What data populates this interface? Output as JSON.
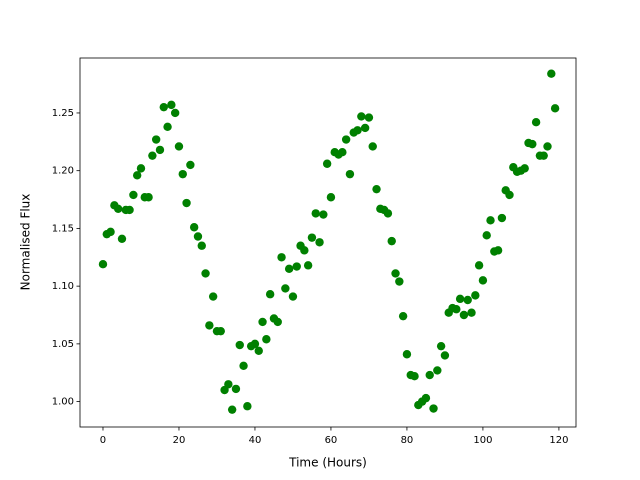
{
  "chart_data": {
    "type": "scatter",
    "xlabel": "Time (Hours)",
    "ylabel": "Normalised Flux",
    "x": [
      0,
      1,
      2,
      3,
      4,
      5,
      6,
      7,
      8,
      9,
      10,
      11,
      12,
      13,
      14,
      15,
      16,
      17,
      18,
      19,
      20,
      21,
      22,
      23,
      24,
      25,
      26,
      27,
      28,
      29,
      30,
      31,
      32,
      33,
      34,
      35,
      36,
      37,
      38,
      39,
      40,
      41,
      42,
      43,
      44,
      45,
      46,
      47,
      48,
      49,
      50,
      51,
      52,
      53,
      54,
      55,
      56,
      57,
      58,
      59,
      60,
      61,
      62,
      63,
      64,
      65,
      66,
      67,
      68,
      69,
      70,
      71,
      72,
      73,
      74,
      75,
      76,
      77,
      78,
      79,
      80,
      81,
      82,
      83,
      84,
      85,
      86,
      87,
      88,
      89,
      90,
      91,
      92,
      93,
      94,
      95,
      96,
      97,
      98,
      99,
      100,
      101,
      102,
      103,
      104,
      105,
      106,
      107,
      108,
      109,
      110,
      111,
      112,
      113,
      114,
      115,
      116,
      117,
      118,
      119
    ],
    "series": [
      {
        "color": "#008000",
        "values": [
          1.119,
          1.145,
          1.147,
          1.17,
          1.167,
          1.141,
          1.166,
          1.166,
          1.179,
          1.196,
          1.202,
          1.177,
          1.177,
          1.213,
          1.227,
          1.218,
          1.255,
          1.238,
          1.257,
          1.25,
          1.221,
          1.197,
          1.172,
          1.205,
          1.151,
          1.143,
          1.135,
          1.111,
          1.066,
          1.091,
          1.061,
          1.061,
          1.01,
          1.015,
          0.993,
          1.011,
          1.049,
          1.031,
          0.996,
          1.048,
          1.05,
          1.044,
          1.069,
          1.054,
          1.093,
          1.072,
          1.069,
          1.125,
          1.098,
          1.115,
          1.091,
          1.117,
          1.135,
          1.131,
          1.118,
          1.142,
          1.163,
          1.138,
          1.162,
          1.206,
          1.177,
          1.216,
          1.214,
          1.216,
          1.227,
          1.197,
          1.233,
          1.235,
          1.247,
          1.237,
          1.246,
          1.221,
          1.184,
          1.167,
          1.166,
          1.163,
          1.139,
          1.111,
          1.104,
          1.074,
          1.041,
          1.023,
          1.022,
          0.997,
          1.0,
          1.003,
          1.023,
          0.994,
          1.027,
          1.048,
          1.04,
          1.077,
          1.081,
          1.08,
          1.089,
          1.075,
          1.088,
          1.077,
          1.092,
          1.118,
          1.105,
          1.144,
          1.157,
          1.13,
          1.131,
          1.159,
          1.183,
          1.179,
          1.203,
          1.199,
          1.2,
          1.202,
          1.224,
          1.223,
          1.242,
          1.213,
          1.213,
          1.221,
          1.284,
          1.254
        ]
      }
    ],
    "xlim": [
      -6.05,
      124.5
    ],
    "xticks": [
      0,
      20,
      40,
      60,
      80,
      100,
      120
    ],
    "ylim": [
      0.978,
      1.2976
    ],
    "yticks": [
      {
        "value": 1,
        "label": "1.00"
      },
      1.05,
      {
        "value": 1.1,
        "label": "1.10"
      },
      1.15,
      {
        "value": 1.2,
        "label": "1.20"
      },
      1.25
    ]
  }
}
